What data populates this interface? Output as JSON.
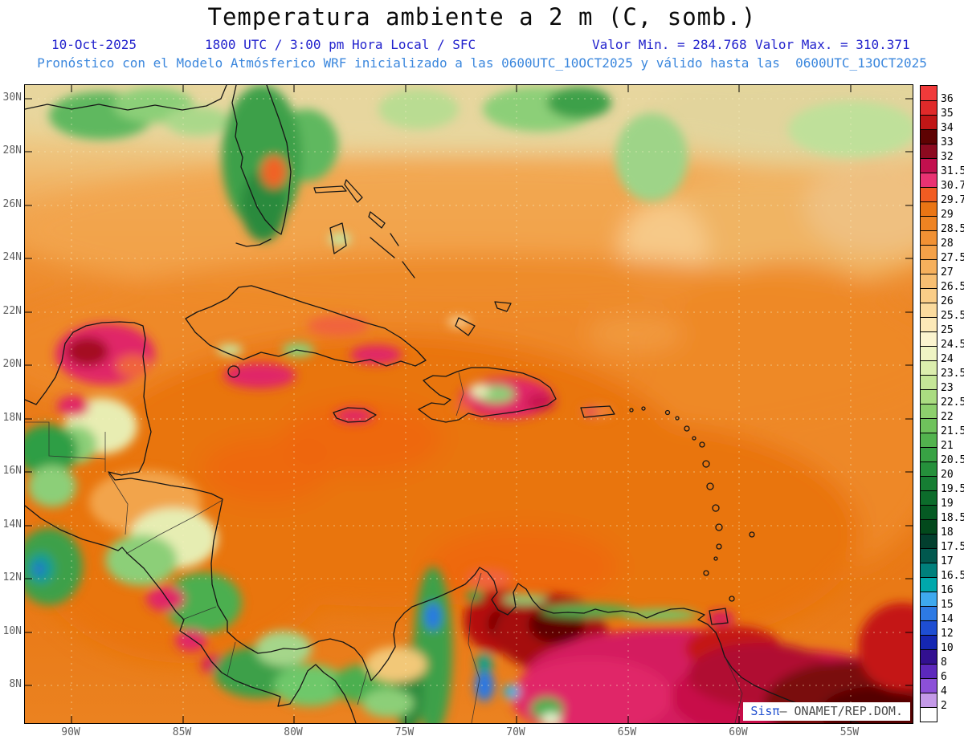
{
  "header": {
    "title": "Temperatura ambiente a 2 m (C, somb.)",
    "date": "10-Oct-2025",
    "time_line": "1800 UTC / 3:00 pm Hora Local / SFC",
    "min_label": "Valor Min. = 284.768",
    "max_label": "Valor Max. = 310.371",
    "forecast_line": "Pronóstico con el Modelo Atmósferico WRF inicializado a las 0600UTC_10OCT2025 y válido hasta las  0600UTC_13OCT2025"
  },
  "map": {
    "lat_labels": [
      "30N",
      "28N",
      "26N",
      "24N",
      "22N",
      "20N",
      "18N",
      "16N",
      "14N",
      "12N",
      "10N",
      "8N"
    ],
    "lon_labels": [
      "90W",
      "85W",
      "80W",
      "75W",
      "70W",
      "65W",
      "60W",
      "55W"
    ]
  },
  "colorbar": {
    "tick_labels": [
      "36",
      "35",
      "34",
      "33",
      "32",
      "31.5",
      "30.7",
      "29.7",
      "29",
      "28.5",
      "28",
      "27.5",
      "27",
      "26.5",
      "26",
      "25.5",
      "25",
      "24.5",
      "24",
      "23.5",
      "23",
      "22.5",
      "22",
      "21.5",
      "21",
      "20.5",
      "20",
      "19.5",
      "19",
      "18.5",
      "18",
      "17.5",
      "17",
      "16.5",
      "16",
      "15",
      "14",
      "12",
      "10",
      "8",
      "6",
      "4",
      "2"
    ],
    "segment_colors": [
      "#f03a3a",
      "#e02a2a",
      "#c01616",
      "#5e0202",
      "#8c0a20",
      "#c2104e",
      "#e93272",
      "#f15c22",
      "#ea7514",
      "#ee8322",
      "#f19134",
      "#f4a148",
      "#f6b05c",
      "#f8bf72",
      "#facd87",
      "#fbdb9e",
      "#fce9b8",
      "#fbf4cf",
      "#eff4c4",
      "#dceeae",
      "#c5e697",
      "#aadc81",
      "#8dd06d",
      "#6fc25c",
      "#52b34e",
      "#38a244",
      "#25903b",
      "#167e33",
      "#0c6c2b",
      "#055a23",
      "#02491c",
      "#023f2e",
      "#01584e",
      "#00807c",
      "#00a8ac",
      "#3ea9ee",
      "#2d7ae4",
      "#1e4ed2",
      "#1527b2",
      "#321090",
      "#5c28bc",
      "#8c50d8",
      "#c49ae8",
      "#ffffff"
    ]
  },
  "watermark": {
    "brand": "Sisπ",
    "org": "– ONAMET/REP.DOM."
  },
  "colors": {
    "header_blue": "#2323cd",
    "forecast_blue": "#3b87dd",
    "sea_orange": "#ea7514",
    "hot_magenta": "#e02767",
    "hot_maroon": "#5e0202"
  }
}
